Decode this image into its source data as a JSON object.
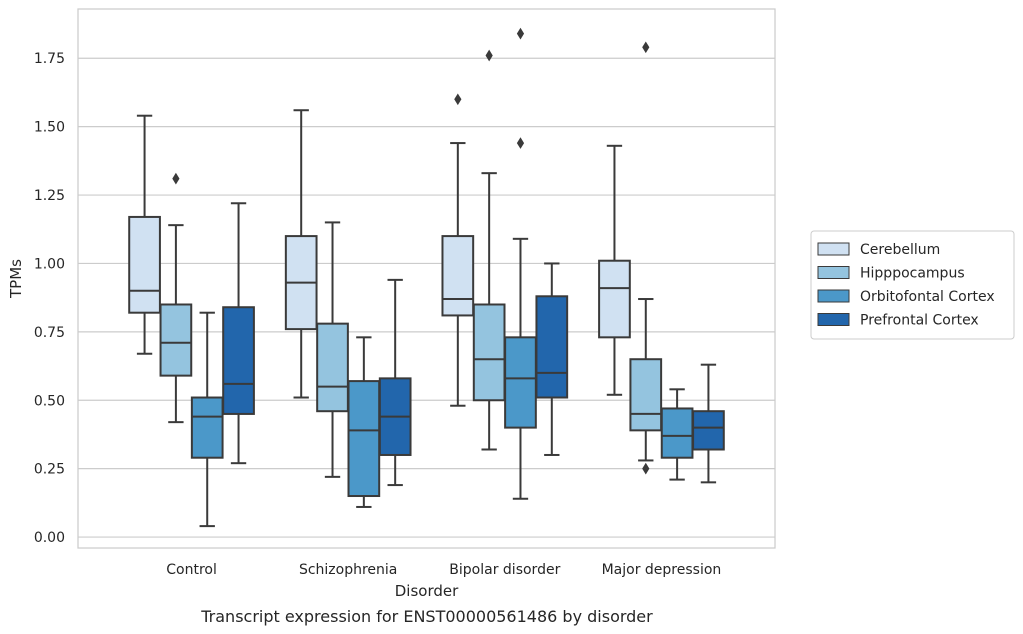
{
  "caption": "Transcript expression for ENST00000561486 by disorder",
  "chart_data": {
    "type": "box",
    "xlabel": "Disorder",
    "ylabel": "TPMs",
    "ylim": [
      -0.04,
      1.93
    ],
    "yticks": [
      "0.00",
      "0.25",
      "0.50",
      "0.75",
      "1.00",
      "1.25",
      "1.50",
      "1.75"
    ],
    "grid": "horizontal",
    "legend_position": "right",
    "categories": [
      "Control",
      "Schizophrenia",
      "Bipolar disorder",
      "Major depression"
    ],
    "series": [
      {
        "name": "Cerebellum",
        "color": "#d0e1f2",
        "boxes": [
          {
            "whislo": 0.67,
            "q1": 0.82,
            "med": 0.9,
            "q3": 1.17,
            "whishi": 1.54,
            "fliers": []
          },
          {
            "whislo": 0.51,
            "q1": 0.76,
            "med": 0.93,
            "q3": 1.1,
            "whishi": 1.56,
            "fliers": []
          },
          {
            "whislo": 0.48,
            "q1": 0.81,
            "med": 0.87,
            "q3": 1.1,
            "whishi": 1.44,
            "fliers": [
              1.6
            ]
          },
          {
            "whislo": 0.52,
            "q1": 0.73,
            "med": 0.91,
            "q3": 1.01,
            "whishi": 1.43,
            "fliers": []
          }
        ]
      },
      {
        "name": "Hipppocampus",
        "color": "#94c4df",
        "boxes": [
          {
            "whislo": 0.42,
            "q1": 0.59,
            "med": 0.71,
            "q3": 0.85,
            "whishi": 1.14,
            "fliers": [
              1.31
            ]
          },
          {
            "whislo": 0.22,
            "q1": 0.46,
            "med": 0.55,
            "q3": 0.78,
            "whishi": 1.15,
            "fliers": []
          },
          {
            "whislo": 0.32,
            "q1": 0.5,
            "med": 0.65,
            "q3": 0.85,
            "whishi": 1.33,
            "fliers": [
              1.76
            ]
          },
          {
            "whislo": 0.28,
            "q1": 0.39,
            "med": 0.45,
            "q3": 0.65,
            "whishi": 0.87,
            "fliers": [
              0.25,
              1.79
            ]
          }
        ]
      },
      {
        "name": "Orbitofontal Cortex",
        "color": "#4b98c9",
        "boxes": [
          {
            "whislo": 0.04,
            "q1": 0.29,
            "med": 0.44,
            "q3": 0.51,
            "whishi": 0.82,
            "fliers": []
          },
          {
            "whislo": 0.11,
            "q1": 0.15,
            "med": 0.39,
            "q3": 0.57,
            "whishi": 0.73,
            "fliers": []
          },
          {
            "whislo": 0.14,
            "q1": 0.4,
            "med": 0.58,
            "q3": 0.73,
            "whishi": 1.09,
            "fliers": [
              1.84,
              1.44
            ]
          },
          {
            "whislo": 0.21,
            "q1": 0.29,
            "med": 0.37,
            "q3": 0.47,
            "whishi": 0.54,
            "fliers": []
          }
        ]
      },
      {
        "name": "Prefrontal Cortex",
        "color": "#2266ac",
        "boxes": [
          {
            "whislo": 0.27,
            "q1": 0.45,
            "med": 0.56,
            "q3": 0.84,
            "whishi": 1.22,
            "fliers": []
          },
          {
            "whislo": 0.19,
            "q1": 0.3,
            "med": 0.44,
            "q3": 0.58,
            "whishi": 0.94,
            "fliers": []
          },
          {
            "whislo": 0.3,
            "q1": 0.51,
            "med": 0.6,
            "q3": 0.88,
            "whishi": 1.0,
            "fliers": []
          },
          {
            "whislo": 0.2,
            "q1": 0.32,
            "med": 0.4,
            "q3": 0.46,
            "whishi": 0.63,
            "fliers": []
          }
        ]
      }
    ]
  }
}
